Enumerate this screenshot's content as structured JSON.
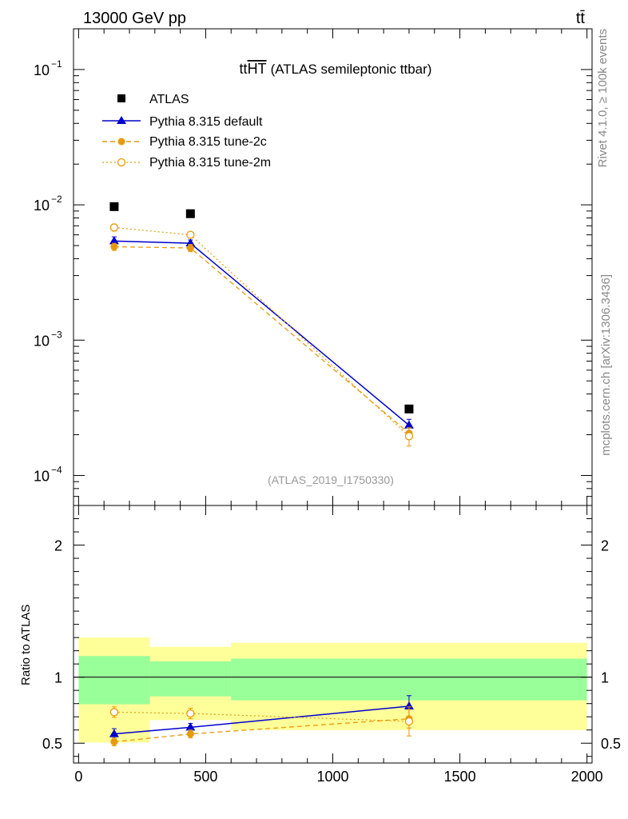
{
  "header": {
    "left": "13000 GeV pp",
    "right": "tt̄"
  },
  "side_labels": {
    "rivet": "Rivet 4.1.0, ≥ 100k events",
    "mcplots": "mcplots.cern.ch [arXiv:1306.3436]"
  },
  "colors": {
    "atlas": "#000000",
    "default": "#0000cc",
    "tune2c": "#e69a0c",
    "tune2m": "#e69a0c",
    "band_inner": "#99ff99",
    "band_outer": "#ffff99"
  },
  "chart_data": {
    "type": "scatter",
    "title_main": "tt",
    "title_over": "HT",
    "title_rest": "(ATLAS semileptonic ttbar)",
    "analysis_id": "(ATLAS_2019_I1750330)",
    "xlim": [
      -20,
      2020
    ],
    "x_ticks": [
      "0",
      "500",
      "1000",
      "1500",
      "2000"
    ],
    "top": {
      "yscale": "log",
      "ylim": [
        6e-05,
        0.2
      ],
      "y_tick_labels": [
        {
          "base": "10",
          "exp": "−1"
        },
        {
          "base": "10",
          "exp": "−2"
        },
        {
          "base": "10",
          "exp": "−3"
        },
        {
          "base": "10",
          "exp": "−4"
        }
      ],
      "legend": [
        "ATLAS",
        "Pythia 8.315 default",
        "Pythia 8.315 tune-2c",
        "Pythia 8.315 tune-2m"
      ],
      "series": [
        {
          "name": "ATLAS",
          "x": [
            140,
            440,
            1300
          ],
          "y": [
            0.0097,
            0.0086,
            0.00031
          ]
        },
        {
          "name": "Pythia 8.315 default",
          "x": [
            140,
            440,
            1300
          ],
          "y": [
            0.0054,
            0.0052,
            0.000235
          ],
          "yerr": [
            0.0004,
            0.0003,
            2.5e-05
          ]
        },
        {
          "name": "Pythia 8.315 tune-2c",
          "x": [
            140,
            440,
            1300
          ],
          "y": [
            0.0049,
            0.0048,
            0.000205
          ],
          "yerr": [
            0.0003,
            0.0003,
            2e-05
          ]
        },
        {
          "name": "Pythia 8.315 tune-2m",
          "x": [
            140,
            440,
            1300
          ],
          "y": [
            0.0068,
            0.006,
            0.000195
          ],
          "yerr": [
            0.0004,
            0.0003,
            3e-05
          ]
        }
      ]
    },
    "ratio": {
      "ylabel": "Ratio to ATLAS",
      "ylim": [
        0.35,
        2.3
      ],
      "y_ticks": [
        "0.5",
        "1",
        "2"
      ],
      "bins": [
        0,
        280,
        600,
        2000
      ],
      "band_inner": [
        [
          0.795,
          1.16
        ],
        [
          0.855,
          1.12
        ],
        [
          0.825,
          1.14
        ]
      ],
      "band_outer": [
        [
          0.505,
          1.3
        ],
        [
          0.675,
          1.23
        ],
        [
          0.6,
          1.26
        ]
      ],
      "series": [
        {
          "name": "Pythia 8.315 default",
          "x": [
            140,
            440,
            1300
          ],
          "y": [
            0.57,
            0.62,
            0.78
          ],
          "yerr": [
            0.04,
            0.03,
            0.08
          ]
        },
        {
          "name": "Pythia 8.315 tune-2c",
          "x": [
            140,
            440,
            1300
          ],
          "y": [
            0.51,
            0.57,
            0.685
          ],
          "yerr": [
            0.03,
            0.03,
            0.07
          ]
        },
        {
          "name": "Pythia 8.315 tune-2m",
          "x": [
            140,
            440,
            1300
          ],
          "y": [
            0.735,
            0.725,
            0.665
          ],
          "yerr": [
            0.04,
            0.04,
            0.11
          ]
        }
      ]
    }
  }
}
